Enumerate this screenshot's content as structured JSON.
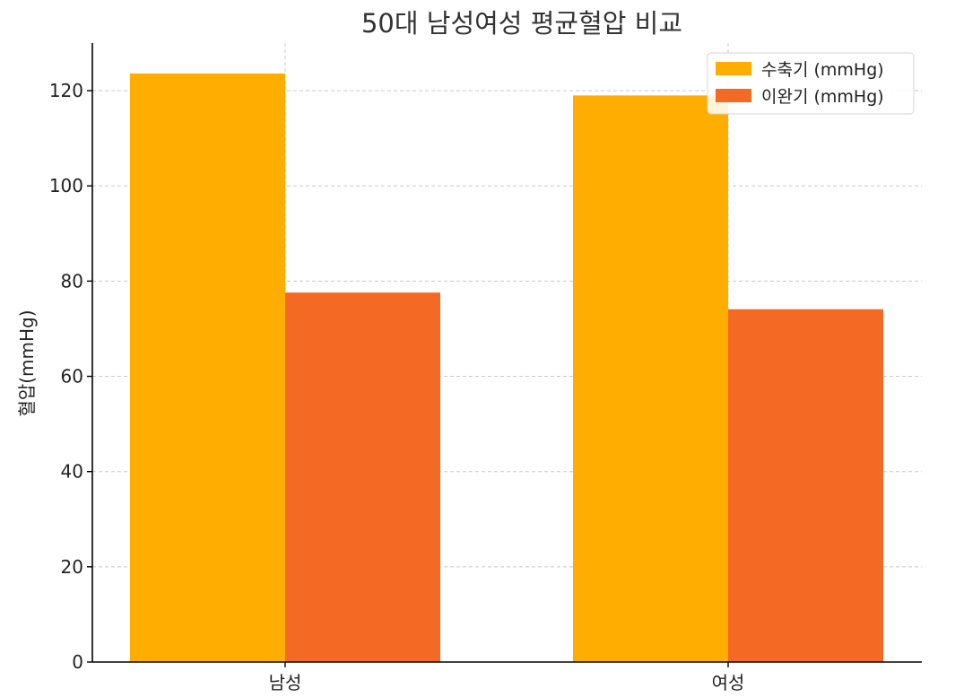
{
  "chart_data": {
    "type": "bar",
    "title": "50대 남성여성 평균혈압 비교",
    "xlabel": "",
    "ylabel": "혈압(mmHg)",
    "categories": [
      "남성",
      "여성"
    ],
    "series": [
      {
        "name": "수축기 (mmHg)",
        "values": [
          123.6,
          119.0
        ],
        "color": "#FFAE00"
      },
      {
        "name": "이완기 (mmHg)",
        "values": [
          77.6,
          74.1
        ],
        "color": "#F46A24"
      }
    ],
    "ylim": [
      0,
      130
    ],
    "yticks": [
      0,
      20,
      40,
      60,
      80,
      100,
      120
    ],
    "grid": true,
    "legend_position": "top-right"
  }
}
